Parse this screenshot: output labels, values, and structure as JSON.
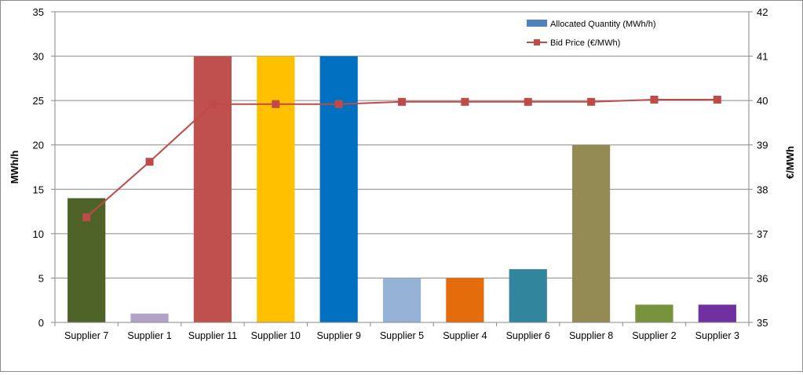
{
  "chart_data": {
    "type": "bar",
    "categories": [
      "Supplier 7",
      "Supplier 1",
      "Supplier 11",
      "Supplier 10",
      "Supplier 9",
      "Supplier 5",
      "Supplier 4",
      "Supplier 6",
      "Supplier 8",
      "Supplier 2",
      "Supplier 3"
    ],
    "series": [
      {
        "name": "Allocated Quantity (MWh/h)",
        "type": "bar",
        "axis": "left",
        "legend_color": "#4f81bd",
        "values": [
          14,
          1,
          30,
          30,
          30,
          5,
          5,
          6,
          20,
          2,
          2
        ],
        "colors": [
          "#4f6228",
          "#b3a2c7",
          "#c0504d",
          "#ffc000",
          "#0070c0",
          "#95b3d7",
          "#e46c0a",
          "#31859c",
          "#948a54",
          "#77933c",
          "#7030a0"
        ]
      },
      {
        "name": "Bid Price (€/MWh)",
        "type": "line",
        "axis": "right",
        "color": "#be4b48",
        "values": [
          37.37,
          38.62,
          39.92,
          39.92,
          39.92,
          39.97,
          39.97,
          39.97,
          39.97,
          40.02,
          40.02
        ]
      }
    ],
    "ylabel": "MWh/h",
    "y2label": "€/MWh",
    "ylim": [
      0,
      35
    ],
    "y2lim": [
      35,
      42
    ],
    "yticks": [
      "0",
      "5",
      "10",
      "15",
      "20",
      "25",
      "30",
      "35"
    ],
    "y2ticks": [
      "35",
      "36",
      "37",
      "38",
      "39",
      "40",
      "41",
      "42"
    ],
    "grid": true,
    "legend_position": "top-right"
  }
}
